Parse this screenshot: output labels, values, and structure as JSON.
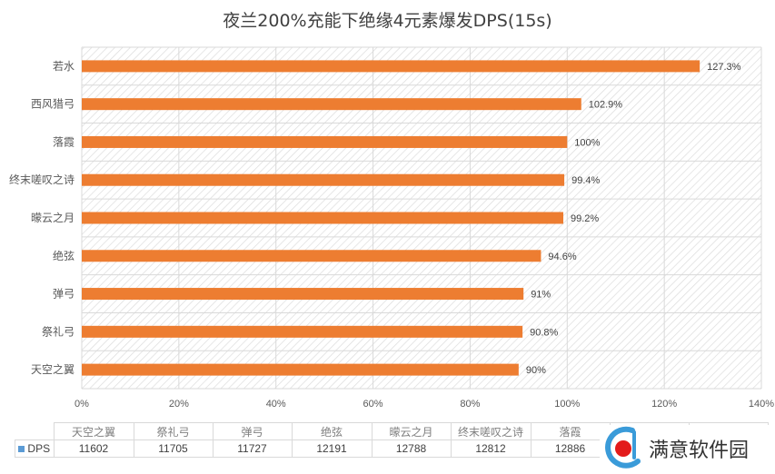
{
  "chart_data": {
    "type": "bar",
    "orientation": "horizontal",
    "title": "夜兰200%充能下绝缘4元素爆发DPS(15s)",
    "categories": [
      "若水",
      "西风猎弓",
      "落霞",
      "终末嗟叹之诗",
      "曚云之月",
      "绝弦",
      "弹弓",
      "祭礼弓",
      "天空之翼"
    ],
    "series": [
      {
        "name": "DPS",
        "values": [
          127.3,
          102.9,
          100,
          99.4,
          99.2,
          94.6,
          91,
          90.8,
          90
        ],
        "labels": [
          "127.3%",
          "102.9%",
          "100%",
          "99.4%",
          "99.2%",
          "94.6%",
          "91%",
          "90.8%",
          "90%"
        ]
      }
    ],
    "xlim": [
      0,
      140
    ],
    "xticks": [
      0,
      20,
      40,
      60,
      80,
      100,
      120,
      140
    ],
    "xtick_labels": [
      "0%",
      "20%",
      "40%",
      "60%",
      "80%",
      "100%",
      "120%",
      "140%"
    ],
    "xlabel": "",
    "ylabel": "",
    "grid": true,
    "bar_color": "#ed7d31",
    "legend_color": "#5b9bd5",
    "data_table": {
      "series_label": "DPS",
      "columns": [
        "天空之翼",
        "祭礼弓",
        "弹弓",
        "绝弦",
        "曚云之月",
        "终末嗟叹之诗",
        "落霞"
      ],
      "values": [
        "11602",
        "11705",
        "11727",
        "12191",
        "12788",
        "12812",
        "12886"
      ]
    }
  },
  "watermark": {
    "text": "满意软件园"
  }
}
